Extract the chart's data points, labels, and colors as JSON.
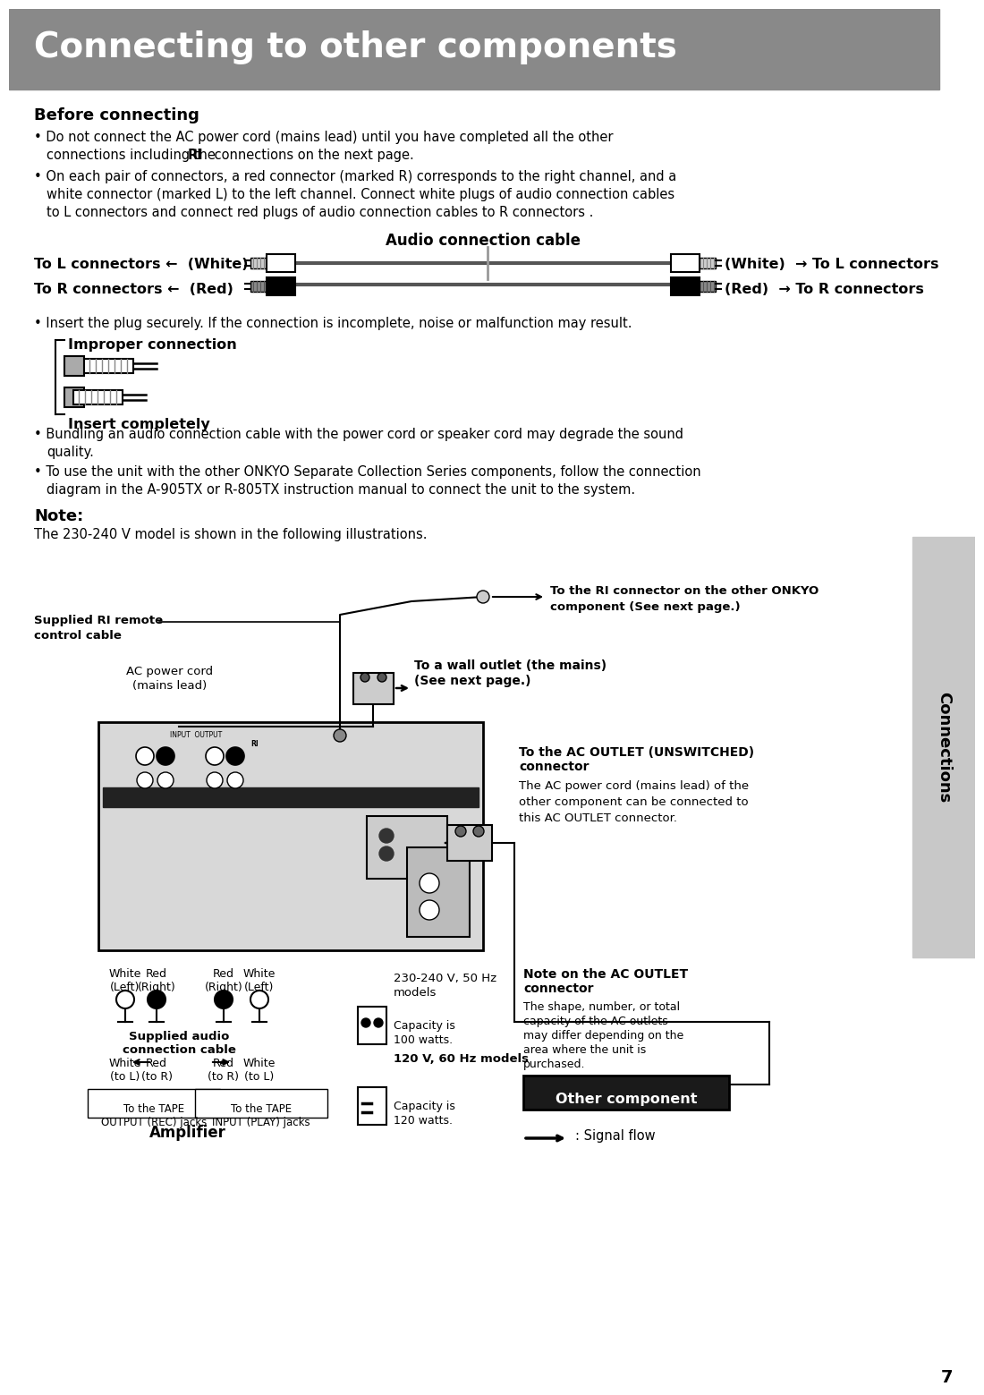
{
  "title": "Connecting to other components",
  "title_bg": "#898989",
  "title_color": "#ffffff",
  "page_bg": "#ffffff",
  "page_number": "7",
  "sidebar_bg": "#c8c8c8",
  "sidebar_text": "Connections",
  "before_connecting_title": "Before connecting",
  "note_title": "Note:",
  "note_text": "The 230-240 V model is shown in the following illustrations.",
  "label_amplifier": "Amplifier",
  "label_other_component": "Other component",
  "label_signal_flow": ": Signal flow"
}
